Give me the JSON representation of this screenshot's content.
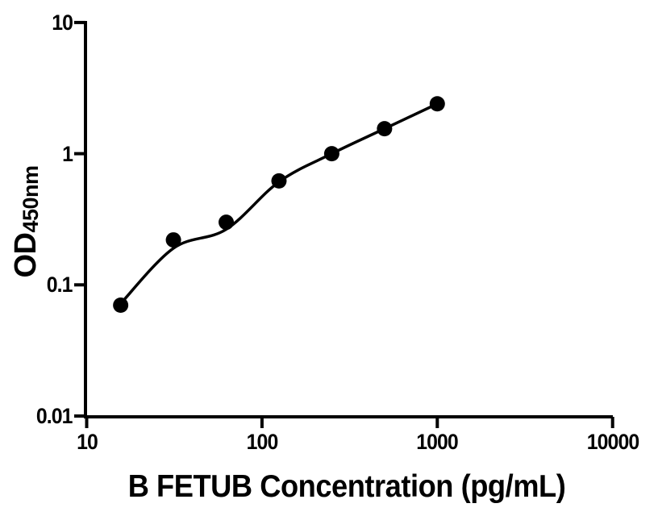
{
  "figure": {
    "background": "#ffffff",
    "ink": "#000000"
  },
  "chart_data": {
    "type": "scatter",
    "title": "",
    "xlabel": "B FETUB Concentration (pg/mL)",
    "ylabel_main": "OD",
    "ylabel_sub": "450nm",
    "x_scale": "log10",
    "y_scale": "log10",
    "xlim": [
      10,
      10000
    ],
    "ylim": [
      0.01,
      10
    ],
    "grid": false,
    "legend": "none",
    "x_ticks": [
      {
        "value": 10,
        "label": "10"
      },
      {
        "value": 100,
        "label": "100"
      },
      {
        "value": 1000,
        "label": "1000"
      },
      {
        "value": 10000,
        "label": "10000"
      }
    ],
    "y_ticks": [
      {
        "value": 10,
        "label": "10"
      },
      {
        "value": 1,
        "label": "1"
      },
      {
        "value": 0.1,
        "label": "0.1"
      },
      {
        "value": 0.01,
        "label": "0.01"
      }
    ],
    "points": {
      "marker": "filled-circle",
      "color": "#000000",
      "x": [
        15.625,
        31.25,
        62.5,
        125,
        250,
        500,
        1000
      ],
      "od": [
        0.07,
        0.22,
        0.3,
        0.62,
        1.0,
        1.55,
        2.4
      ]
    },
    "fit_curve": {
      "description": "smooth standard-curve fit line",
      "color": "#000000",
      "x": [
        15.625,
        31.25,
        62.5,
        125,
        250,
        500,
        1000
      ],
      "od": [
        0.072,
        0.19,
        0.265,
        0.61,
        1.0,
        1.55,
        2.4
      ]
    }
  }
}
